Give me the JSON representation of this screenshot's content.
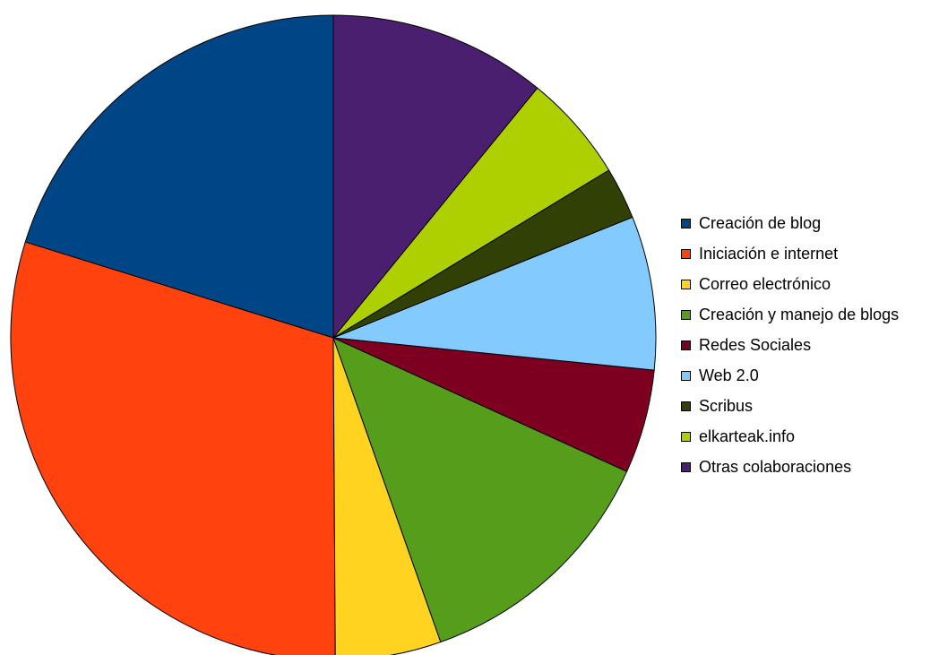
{
  "chart_data": {
    "type": "pie",
    "title": "",
    "start": "12 o'clock",
    "direction": "counterclockwise",
    "legend_position": "right",
    "slices": [
      {
        "label": "Creación de blog",
        "value": 20.2,
        "color": "#004586"
      },
      {
        "label": "Iniciación e internet",
        "value": 29.9,
        "color": "#ff420e"
      },
      {
        "label": "Correo electrónico",
        "value": 5.3,
        "color": "#ffd320"
      },
      {
        "label": "Creación y manejo de blogs",
        "value": 12.8,
        "color": "#579d1c"
      },
      {
        "label": "Redes Sociales",
        "value": 5.2,
        "color": "#7e0021"
      },
      {
        "label": "Web 2.0",
        "value": 7.7,
        "color": "#83caff"
      },
      {
        "label": "Scribus",
        "value": 2.6,
        "color": "#314004"
      },
      {
        "label": "elkarteak.info",
        "value": 5.4,
        "color": "#aecf00"
      },
      {
        "label": "Otras colaboraciones",
        "value": 10.9,
        "color": "#4b1f6f"
      }
    ]
  }
}
